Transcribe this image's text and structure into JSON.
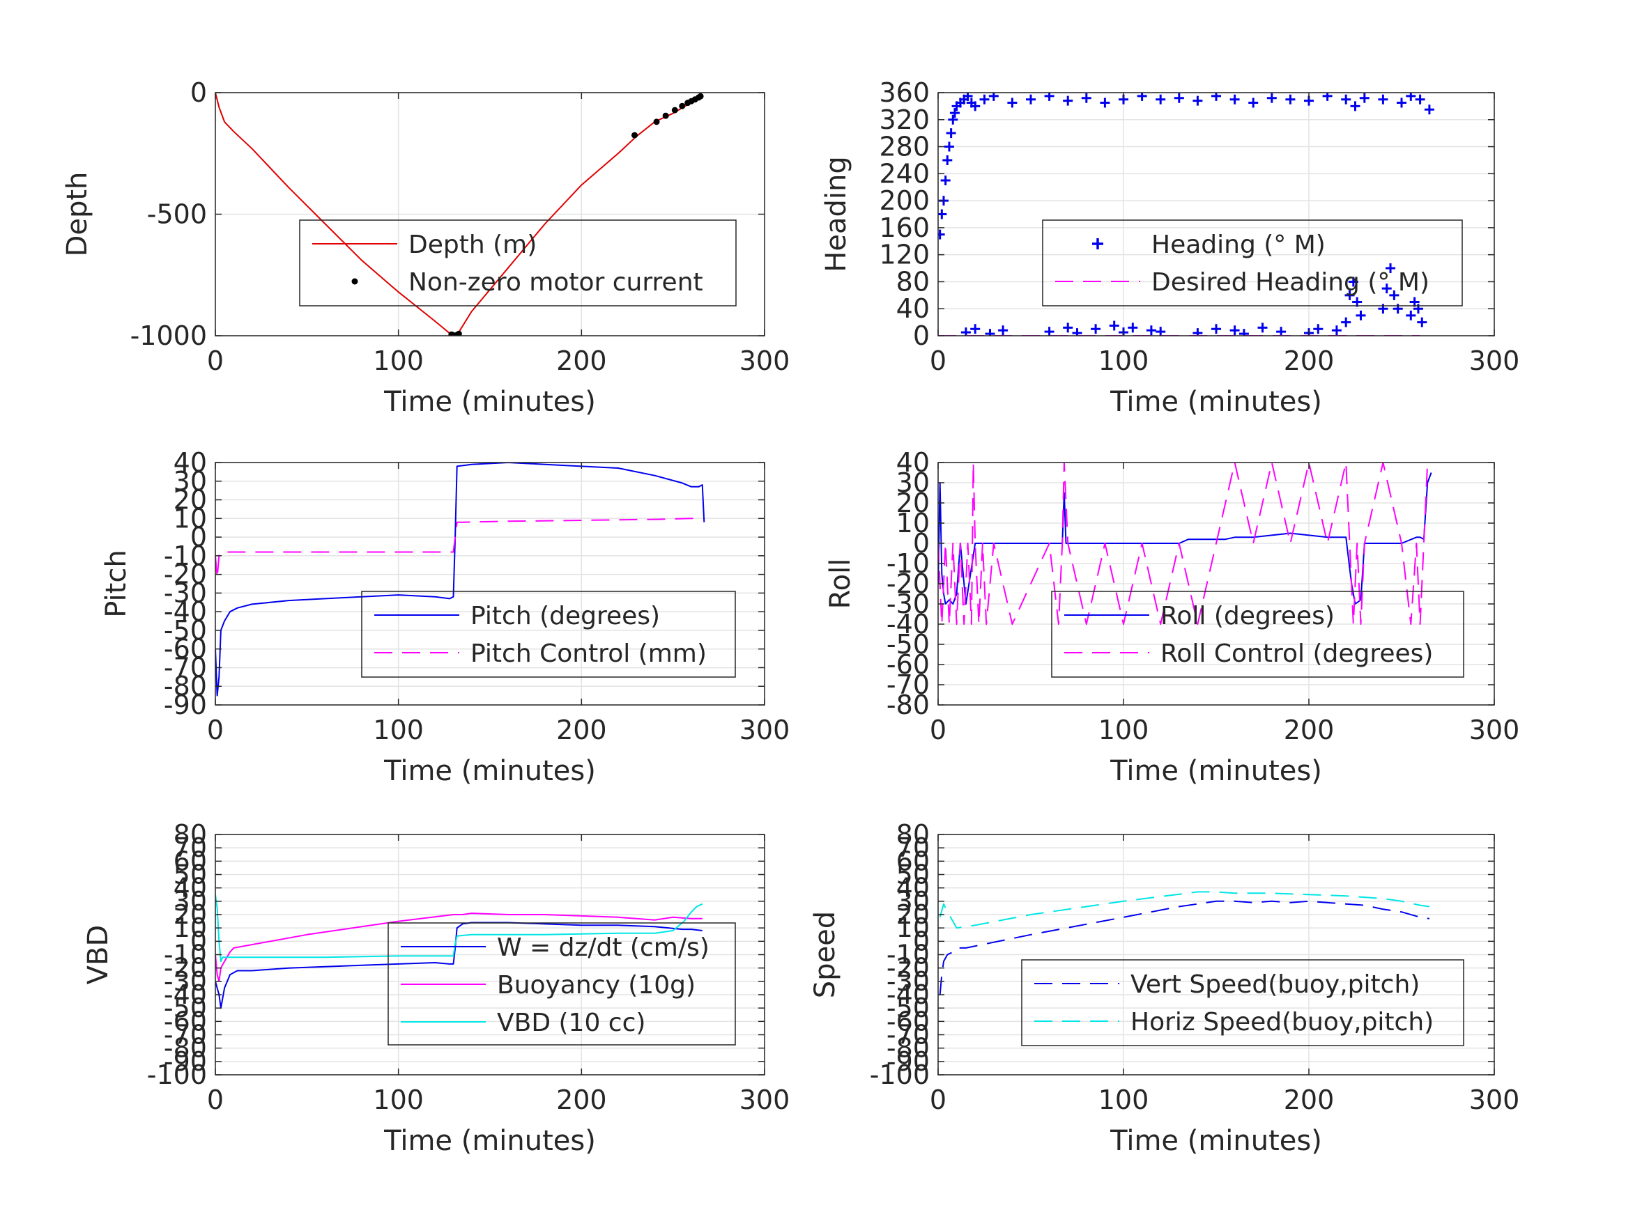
{
  "colors": {
    "red": "#e00000",
    "blue": "#0000ee",
    "magenta": "#ff00ff",
    "cyan": "#00e5e5",
    "black": "#000000",
    "grid": "#e3e3e3",
    "axis": "#262626"
  },
  "chart_data": [
    {
      "id": "depth",
      "type": "line",
      "xlabel": "Time (minutes)",
      "ylabel": "Depth",
      "xlim": [
        0,
        300
      ],
      "ylim": [
        -1000,
        0
      ],
      "xticks": [
        0,
        100,
        200,
        300
      ],
      "yticks": [
        -1000,
        -500,
        0
      ],
      "legend": "center-right",
      "series": [
        {
          "name": "Depth (m)",
          "color": "red",
          "style": "solid",
          "x": [
            0,
            2,
            5,
            10,
            20,
            40,
            60,
            80,
            100,
            120,
            128,
            131,
            133,
            140,
            160,
            180,
            200,
            220,
            230,
            240,
            250,
            260,
            266
          ],
          "y": [
            0,
            -60,
            -120,
            -160,
            -230,
            -390,
            -540,
            -690,
            -820,
            -940,
            -990,
            -1000,
            -985,
            -900,
            -720,
            -540,
            -380,
            -250,
            -180,
            -120,
            -85,
            -40,
            -10
          ]
        },
        {
          "name": "Non-zero motor current",
          "color": "black",
          "style": "dots",
          "x": [
            129,
            130,
            131,
            132,
            133,
            229,
            241,
            246,
            251,
            255,
            258,
            260,
            262,
            264,
            265
          ],
          "y": [
            -995,
            -998,
            -1000,
            -997,
            -992,
            -175,
            -120,
            -95,
            -72,
            -55,
            -42,
            -35,
            -28,
            -20,
            -15
          ]
        }
      ]
    },
    {
      "id": "heading",
      "type": "scatter",
      "xlabel": "Time (minutes)",
      "ylabel": "Heading",
      "xlim": [
        0,
        300
      ],
      "ylim": [
        0,
        360
      ],
      "xticks": [
        0,
        100,
        200,
        300
      ],
      "yticks": [
        0,
        40,
        80,
        120,
        160,
        200,
        240,
        280,
        320,
        360
      ],
      "legend": "center-right",
      "series": [
        {
          "name": "Heading (° M)",
          "color": "blue",
          "style": "plus",
          "x": [
            1,
            2,
            3,
            4,
            5,
            6,
            7,
            8,
            9,
            10,
            12,
            14,
            16,
            18,
            20,
            25,
            30,
            40,
            50,
            60,
            70,
            80,
            90,
            100,
            110,
            120,
            130,
            140,
            150,
            160,
            170,
            180,
            190,
            200,
            210,
            220,
            225,
            230,
            240,
            250,
            255,
            260,
            265,
            15,
            20,
            28,
            35,
            60,
            70,
            75,
            85,
            95,
            100,
            105,
            115,
            120,
            140,
            150,
            160,
            165,
            175,
            185,
            200,
            205,
            215,
            220,
            222,
            224,
            226,
            228,
            240,
            242,
            244,
            246,
            248,
            255,
            257,
            259,
            261
          ],
          "y": [
            150,
            180,
            200,
            230,
            260,
            280,
            300,
            320,
            330,
            340,
            345,
            350,
            355,
            345,
            340,
            350,
            355,
            345,
            350,
            355,
            348,
            352,
            345,
            350,
            355,
            350,
            352,
            348,
            355,
            350,
            345,
            352,
            350,
            348,
            355,
            350,
            340,
            352,
            350,
            345,
            355,
            350,
            335,
            5,
            10,
            3,
            8,
            6,
            12,
            4,
            10,
            15,
            5,
            12,
            8,
            6,
            4,
            10,
            8,
            3,
            12,
            6,
            4,
            10,
            8,
            20,
            60,
            80,
            50,
            30,
            40,
            70,
            100,
            60,
            40,
            30,
            50,
            40,
            20
          ]
        },
        {
          "name": "Desired Heading (° M)",
          "color": "magenta",
          "style": "dash",
          "x": [
            0,
            260
          ],
          "y": [
            0,
            0
          ]
        }
      ]
    },
    {
      "id": "pitch",
      "type": "line",
      "xlabel": "Time (minutes)",
      "ylabel": "Pitch",
      "xlim": [
        0,
        300
      ],
      "ylim": [
        -90,
        40
      ],
      "xticks": [
        0,
        100,
        200,
        300
      ],
      "yticks": [
        -90,
        -80,
        -70,
        -60,
        -50,
        -40,
        -30,
        -20,
        -10,
        0,
        10,
        20,
        30,
        40
      ],
      "legend": "center-right",
      "series": [
        {
          "name": "Pitch (degrees)",
          "color": "blue",
          "style": "solid",
          "x": [
            0,
            1,
            2,
            3,
            5,
            8,
            12,
            20,
            40,
            60,
            80,
            100,
            120,
            128,
            130,
            131,
            132,
            140,
            160,
            180,
            200,
            220,
            240,
            255,
            260,
            264,
            266,
            267
          ],
          "y": [
            -60,
            -85,
            -75,
            -50,
            -45,
            -40,
            -38,
            -36,
            -34,
            -33,
            -32,
            -31,
            -32,
            -33,
            -32,
            0,
            38,
            39,
            40,
            39,
            38,
            37,
            33,
            29,
            27,
            27,
            28,
            8
          ]
        },
        {
          "name": "Pitch Control (mm)",
          "color": "magenta",
          "style": "dash",
          "x": [
            0,
            1,
            2,
            3,
            130,
            131,
            132,
            135,
            160,
            200,
            240,
            260,
            266
          ],
          "y": [
            -10,
            -22,
            -10,
            -8,
            -8,
            0,
            8,
            8,
            8.5,
            9,
            9.5,
            10,
            10
          ]
        }
      ]
    },
    {
      "id": "roll",
      "type": "line",
      "xlabel": "Time (minutes)",
      "ylabel": "Roll",
      "xlim": [
        0,
        300
      ],
      "ylim": [
        -80,
        40
      ],
      "xticks": [
        0,
        100,
        200,
        300
      ],
      "yticks": [
        -80,
        -70,
        -60,
        -50,
        -40,
        -30,
        -20,
        -10,
        0,
        10,
        20,
        30,
        40
      ],
      "legend": "center-right",
      "series": [
        {
          "name": "Roll (degrees)",
          "color": "blue",
          "style": "solid",
          "x": [
            0,
            1,
            2,
            3,
            4,
            6,
            8,
            10,
            12,
            15,
            20,
            25,
            30,
            40,
            60,
            67,
            68,
            69,
            70,
            80,
            90,
            100,
            110,
            120,
            125,
            130,
            135,
            140,
            145,
            150,
            155,
            160,
            170,
            180,
            190,
            200,
            210,
            220,
            223,
            225,
            228,
            230,
            240,
            250,
            258,
            260,
            262,
            264,
            266
          ],
          "y": [
            -20,
            30,
            -15,
            -25,
            -30,
            -28,
            -30,
            -25,
            0,
            -30,
            0,
            0,
            0,
            0,
            0,
            0,
            25,
            0,
            0,
            0,
            0,
            0,
            0,
            0,
            0,
            0,
            2,
            2,
            2,
            2,
            2,
            3,
            3,
            4,
            5,
            4,
            3,
            3,
            -20,
            -30,
            -28,
            0,
            0,
            0,
            3,
            3,
            2,
            30,
            35
          ]
        },
        {
          "name": "Roll Control (degrees)",
          "color": "magenta",
          "style": "dash",
          "x": [
            0,
            2,
            4,
            6,
            8,
            10,
            12,
            14,
            16,
            18,
            19,
            20,
            22,
            24,
            26,
            30,
            40,
            60,
            65,
            67,
            68,
            70,
            80,
            90,
            100,
            110,
            120,
            130,
            140,
            150,
            160,
            170,
            180,
            190,
            200,
            210,
            220,
            222,
            224,
            226,
            228,
            230,
            240,
            250,
            255,
            258,
            260,
            262,
            264,
            266
          ],
          "y": [
            0,
            -40,
            0,
            -40,
            0,
            -40,
            0,
            -40,
            0,
            -40,
            40,
            0,
            -40,
            0,
            -40,
            0,
            -40,
            0,
            -40,
            0,
            40,
            0,
            -40,
            0,
            -40,
            0,
            -40,
            0,
            -40,
            0,
            40,
            0,
            40,
            0,
            40,
            0,
            40,
            0,
            -40,
            0,
            -40,
            0,
            40,
            0,
            -40,
            0,
            -40,
            0,
            40,
            40
          ]
        }
      ]
    },
    {
      "id": "vbd",
      "type": "line",
      "xlabel": "Time (minutes)",
      "ylabel": "VBD",
      "xlim": [
        0,
        300
      ],
      "ylim": [
        -100,
        80
      ],
      "xticks": [
        0,
        100,
        200,
        300
      ],
      "yticks": [
        -100,
        -90,
        -80,
        -70,
        -60,
        -50,
        -40,
        -30,
        -20,
        -10,
        0,
        10,
        20,
        30,
        40,
        50,
        60,
        70,
        80
      ],
      "legend": "center-right",
      "series": [
        {
          "name": "W = dz/dt (cm/s)",
          "color": "blue",
          "style": "solid",
          "x": [
            0,
            1,
            2,
            3,
            5,
            8,
            12,
            20,
            40,
            60,
            80,
            100,
            120,
            128,
            130,
            131,
            132,
            135,
            140,
            160,
            180,
            200,
            220,
            240,
            255,
            260,
            266
          ],
          "y": [
            -30,
            -35,
            -40,
            -50,
            -35,
            -25,
            -22,
            -22,
            -20,
            -19,
            -18,
            -17,
            -16,
            -17,
            -17,
            -5,
            10,
            13,
            14,
            14,
            13,
            12,
            12,
            11,
            9,
            9,
            8
          ]
        },
        {
          "name": "Buoyancy (10g)",
          "color": "magenta",
          "style": "solid",
          "x": [
            0,
            1,
            2,
            3,
            5,
            8,
            10,
            50,
            100,
            130,
            135,
            140,
            160,
            180,
            200,
            220,
            230,
            240,
            250,
            260,
            266
          ],
          "y": [
            -10,
            -25,
            -30,
            -20,
            -15,
            -8,
            -5,
            5,
            15,
            20,
            20,
            21,
            20,
            20,
            19,
            18,
            17,
            16,
            18,
            17,
            17
          ]
        },
        {
          "name": "VBD (10 cc)",
          "color": "cyan",
          "style": "solid",
          "x": [
            0,
            1,
            2,
            3,
            4,
            5,
            8,
            20,
            60,
            100,
            120,
            128,
            130,
            131,
            132,
            140,
            180,
            220,
            240,
            250,
            256,
            260,
            263,
            266
          ],
          "y": [
            35,
            25,
            0,
            -15,
            -12,
            -12,
            -12,
            -12,
            -12,
            -11,
            -11,
            -11,
            -11,
            -2,
            4,
            5,
            5,
            6,
            6,
            8,
            15,
            22,
            26,
            28
          ]
        }
      ]
    },
    {
      "id": "speed",
      "type": "line",
      "xlabel": "Time (minutes)",
      "ylabel": "Speed",
      "xlim": [
        0,
        300
      ],
      "ylim": [
        -100,
        80
      ],
      "xticks": [
        0,
        100,
        200,
        300
      ],
      "yticks": [
        -100,
        -90,
        -80,
        -70,
        -60,
        -50,
        -40,
        -30,
        -20,
        -10,
        0,
        10,
        20,
        30,
        40,
        50,
        60,
        70,
        80
      ],
      "legend": "center-right",
      "series": [
        {
          "name": "Vert Speed(buoy,pitch)",
          "color": "blue",
          "style": "dash",
          "x": [
            1,
            2,
            3,
            5,
            8,
            10,
            15,
            50,
            100,
            130,
            140,
            150,
            160,
            170,
            180,
            190,
            200,
            210,
            220,
            230,
            240,
            250,
            260,
            265
          ],
          "y": [
            -40,
            -25,
            -15,
            -10,
            -8,
            -5,
            -5,
            5,
            18,
            26,
            28,
            30,
            30,
            29,
            30,
            29,
            30,
            29,
            28,
            27,
            24,
            22,
            18,
            17
          ]
        },
        {
          "name": "Horiz Speed(buoy,pitch)",
          "color": "cyan",
          "style": "dash",
          "x": [
            1,
            3,
            5,
            8,
            10,
            20,
            50,
            100,
            140,
            150,
            160,
            180,
            200,
            220,
            230,
            240,
            250,
            260,
            265
          ],
          "y": [
            18,
            28,
            22,
            15,
            10,
            12,
            20,
            30,
            37,
            37,
            36,
            36,
            35,
            34,
            33,
            32,
            30,
            27,
            26
          ]
        }
      ]
    }
  ]
}
